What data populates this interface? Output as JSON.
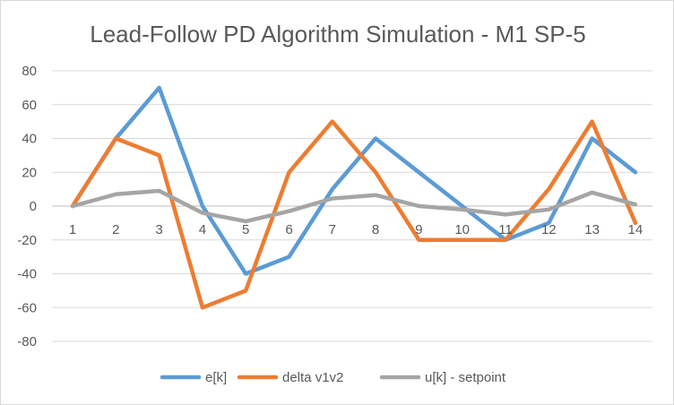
{
  "chart_data": {
    "type": "line",
    "title": "Lead-Follow PD Algorithm Simulation - M1 SP-5",
    "xlabel": "",
    "ylabel": "",
    "categories": [
      "1",
      "2",
      "3",
      "4",
      "5",
      "6",
      "7",
      "8",
      "9",
      "10",
      "11",
      "12",
      "13",
      "14"
    ],
    "ylim": [
      -80,
      80
    ],
    "yticks": [
      80,
      60,
      40,
      20,
      0,
      -20,
      -40,
      -60,
      -80
    ],
    "ytick_labels": [
      "80",
      "60",
      "40",
      "20",
      "0",
      "-20",
      "-40",
      "-60",
      "-80"
    ],
    "grid": true,
    "legend_position": "bottom",
    "series": [
      {
        "name": "e[k]",
        "color": "#5b9bd5",
        "values": [
          0,
          40,
          70,
          0,
          -40,
          -30,
          10,
          40,
          20,
          0,
          -20,
          -10,
          40,
          20
        ]
      },
      {
        "name": "delta v1v2",
        "color": "#ed7d31",
        "values": [
          0,
          40,
          30,
          -60,
          -50,
          20,
          50,
          20,
          -20,
          -20,
          -20,
          10,
          50,
          -10
        ]
      },
      {
        "name": "u[k] - setpoint",
        "color": "#a5a5a5",
        "values": [
          0,
          7,
          9,
          -4,
          -9,
          -3,
          4.5,
          6.5,
          0,
          -2,
          -5,
          -2,
          8,
          1
        ]
      }
    ]
  }
}
